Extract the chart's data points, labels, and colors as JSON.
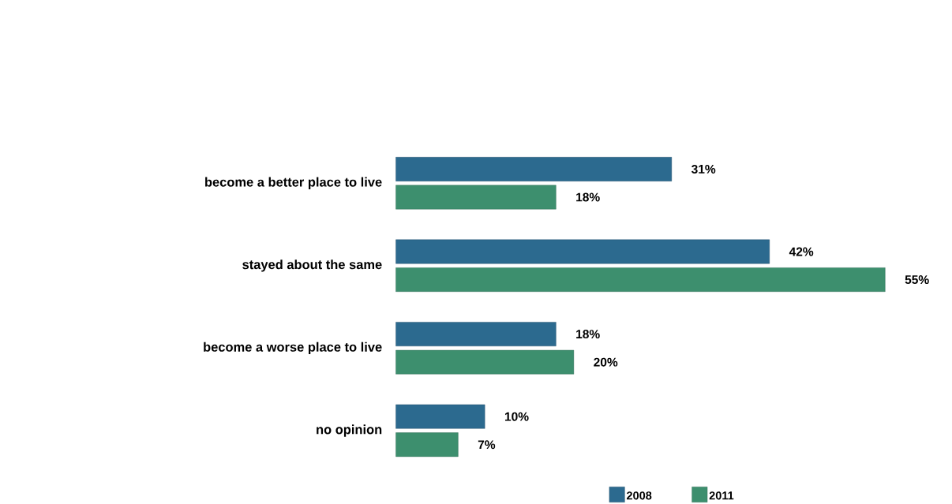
{
  "chart_data": {
    "type": "bar",
    "orientation": "horizontal",
    "categories": [
      "become a better place to live",
      "stayed about the same",
      "become a worse place to live",
      "no opinion"
    ],
    "series": [
      {
        "name": "2008",
        "color": "#2c6a8f",
        "values": [
          31,
          42,
          18,
          10
        ],
        "value_labels": [
          "31%",
          "42%",
          "18%",
          "10%"
        ]
      },
      {
        "name": "2011",
        "color": "#3d8f6e",
        "values": [
          18,
          55,
          20,
          7
        ],
        "value_labels": [
          "18%",
          "55%",
          "20%",
          "7%"
        ]
      }
    ],
    "legend": "bottom"
  }
}
